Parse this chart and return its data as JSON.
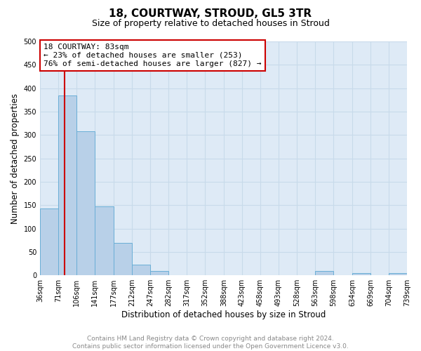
{
  "title": "18, COURTWAY, STROUD, GL5 3TR",
  "subtitle": "Size of property relative to detached houses in Stroud",
  "xlabel": "Distribution of detached houses by size in Stroud",
  "ylabel": "Number of detached properties",
  "bar_edges": [
    36,
    71,
    106,
    141,
    177,
    212,
    247,
    282,
    317,
    352,
    388,
    423,
    458,
    493,
    528,
    563,
    598,
    634,
    669,
    704,
    739
  ],
  "bar_heights": [
    143,
    385,
    308,
    148,
    70,
    23,
    9,
    0,
    0,
    0,
    0,
    0,
    0,
    0,
    0,
    9,
    0,
    5,
    0,
    5
  ],
  "bar_color": "#b8d0e8",
  "bar_edge_color": "#6aaed6",
  "red_line_x": 83,
  "ylim": [
    0,
    500
  ],
  "yticks": [
    0,
    50,
    100,
    150,
    200,
    250,
    300,
    350,
    400,
    450,
    500
  ],
  "annotation_box_text": "18 COURTWAY: 83sqm\n← 23% of detached houses are smaller (253)\n76% of semi-detached houses are larger (827) →",
  "annotation_box_color": "#ffffff",
  "annotation_box_edgecolor": "#cc0000",
  "grid_color": "#c8daea",
  "background_color": "#deeaf6",
  "tick_labels": [
    "36sqm",
    "71sqm",
    "106sqm",
    "141sqm",
    "177sqm",
    "212sqm",
    "247sqm",
    "282sqm",
    "317sqm",
    "352sqm",
    "388sqm",
    "423sqm",
    "458sqm",
    "493sqm",
    "528sqm",
    "563sqm",
    "598sqm",
    "634sqm",
    "669sqm",
    "704sqm",
    "739sqm"
  ],
  "footer_text": "Contains HM Land Registry data © Crown copyright and database right 2024.\nContains public sector information licensed under the Open Government Licence v3.0.",
  "title_fontsize": 11,
  "subtitle_fontsize": 9,
  "axis_label_fontsize": 8.5,
  "tick_fontsize": 7,
  "footer_fontsize": 6.5,
  "annot_fontsize": 8
}
